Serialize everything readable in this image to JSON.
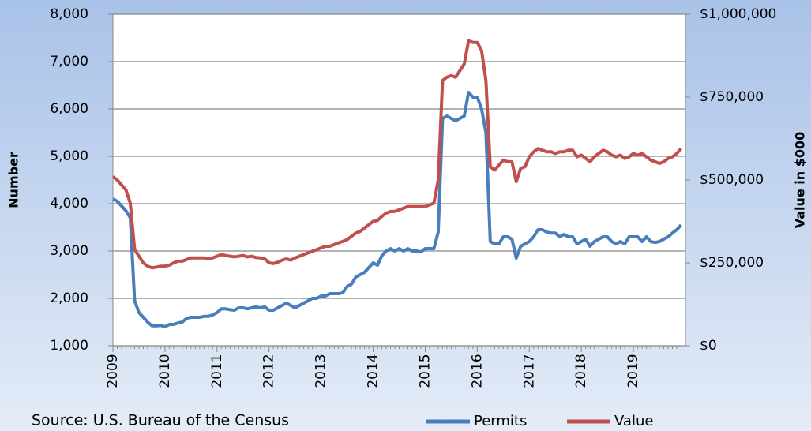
{
  "chart_data": {
    "type": "line",
    "y_label": "Number",
    "y2_label": "Value in $000",
    "source": "Source: U.S. Bureau of the Census",
    "categories": [
      "2009",
      null,
      null,
      null,
      null,
      null,
      null,
      null,
      null,
      null,
      null,
      null,
      "2010",
      null,
      null,
      null,
      null,
      null,
      null,
      null,
      null,
      null,
      null,
      null,
      "2011",
      null,
      null,
      null,
      null,
      null,
      null,
      null,
      null,
      null,
      null,
      null,
      "2012",
      null,
      null,
      null,
      null,
      null,
      null,
      null,
      null,
      null,
      null,
      null,
      "2013",
      null,
      null,
      null,
      null,
      null,
      null,
      null,
      null,
      null,
      null,
      null,
      "2014",
      null,
      null,
      null,
      null,
      null,
      null,
      null,
      null,
      null,
      null,
      null,
      "2015",
      null,
      null,
      null,
      null,
      null,
      null,
      null,
      null,
      null,
      null,
      null,
      "2016",
      null,
      null,
      null,
      null,
      null,
      null,
      null,
      null,
      null,
      null,
      null,
      "2017",
      null,
      null,
      null,
      null,
      null,
      null,
      null,
      null,
      null,
      null,
      null,
      "2018",
      null,
      null,
      null,
      null,
      null,
      null,
      null,
      null,
      null,
      null,
      null,
      "2019",
      null,
      null,
      null,
      null,
      null,
      null,
      null,
      null,
      null,
      null,
      null
    ],
    "series": [
      {
        "name": "Permits",
        "color": "#4a7ebb",
        "values": [
          4100,
          4050,
          3950,
          3850,
          3700,
          1950,
          1700,
          1600,
          1500,
          1420,
          1420,
          1430,
          1400,
          1450,
          1450,
          1480,
          1500,
          1580,
          1600,
          1600,
          1600,
          1620,
          1620,
          1650,
          1700,
          1780,
          1780,
          1760,
          1750,
          1800,
          1800,
          1780,
          1800,
          1820,
          1800,
          1820,
          1750,
          1750,
          1800,
          1850,
          1900,
          1850,
          1800,
          1850,
          1900,
          1950,
          2000,
          2000,
          2050,
          2050,
          2100,
          2100,
          2100,
          2120,
          2250,
          2300,
          2450,
          2500,
          2550,
          2650,
          2750,
          2700,
          2900,
          3000,
          3050,
          3000,
          3050,
          3000,
          3050,
          3000,
          3000,
          2980,
          3050,
          3050,
          3050,
          3400,
          5800,
          5850,
          5800,
          5750,
          5800,
          5850,
          6350,
          6250,
          6250,
          6000,
          5500,
          3200,
          3150,
          3150,
          3300,
          3300,
          3250,
          2850,
          3100,
          3150,
          3200,
          3300,
          3450,
          3450,
          3400,
          3380,
          3380,
          3300,
          3350,
          3300,
          3300,
          3150,
          3200,
          3250,
          3100,
          3200,
          3250,
          3300,
          3300,
          3200,
          3150,
          3200,
          3150,
          3300,
          3300,
          3300,
          3200,
          3300,
          3200,
          3180,
          3200,
          3250,
          3300,
          3380,
          3450,
          3550
        ]
      },
      {
        "name": "Value",
        "color": "#c0504d",
        "axis": "y2",
        "values": [
          510000,
          500000,
          485000,
          470000,
          430000,
          290000,
          270000,
          250000,
          240000,
          235000,
          237000,
          240000,
          240000,
          243000,
          250000,
          255000,
          255000,
          260000,
          265000,
          265000,
          265000,
          265000,
          262000,
          265000,
          270000,
          275000,
          272000,
          270000,
          268000,
          270000,
          272000,
          268000,
          270000,
          266000,
          265000,
          262000,
          250000,
          248000,
          252000,
          258000,
          262000,
          258000,
          265000,
          270000,
          275000,
          280000,
          285000,
          290000,
          295000,
          300000,
          300000,
          305000,
          310000,
          315000,
          320000,
          330000,
          340000,
          345000,
          355000,
          365000,
          375000,
          378000,
          390000,
          400000,
          405000,
          405000,
          410000,
          415000,
          420000,
          420000,
          420000,
          420000,
          420000,
          425000,
          430000,
          500000,
          800000,
          810000,
          815000,
          810000,
          830000,
          850000,
          920000,
          915000,
          915000,
          890000,
          800000,
          540000,
          530000,
          545000,
          560000,
          555000,
          555000,
          495000,
          535000,
          540000,
          570000,
          585000,
          595000,
          590000,
          585000,
          585000,
          580000,
          585000,
          585000,
          590000,
          590000,
          570000,
          575000,
          565000,
          555000,
          570000,
          580000,
          590000,
          585000,
          575000,
          570000,
          575000,
          565000,
          570000,
          580000,
          575000,
          580000,
          570000,
          560000,
          555000,
          550000,
          555000,
          565000,
          570000,
          580000,
          595000
        ]
      }
    ],
    "ylim": [
      1000,
      8000
    ],
    "yticks": [
      {
        "value": 1000,
        "label": "1,000"
      },
      {
        "value": 2000,
        "label": "2,000"
      },
      {
        "value": 3000,
        "label": "3,000"
      },
      {
        "value": 4000,
        "label": "4,000"
      },
      {
        "value": 5000,
        "label": "5,000"
      },
      {
        "value": 6000,
        "label": "6,000"
      },
      {
        "value": 7000,
        "label": "7,000"
      },
      {
        "value": 8000,
        "label": "8,000"
      }
    ],
    "y2lim": [
      0,
      1000000
    ],
    "y2ticks": [
      {
        "value": 0,
        "label": "$0"
      },
      {
        "value": 250000,
        "label": "$250,000"
      },
      {
        "value": 500000,
        "label": "$500,000"
      },
      {
        "value": 750000,
        "label": "$750,000"
      },
      {
        "value": 1000000,
        "label": "$1,000,000"
      }
    ],
    "grid": true
  }
}
